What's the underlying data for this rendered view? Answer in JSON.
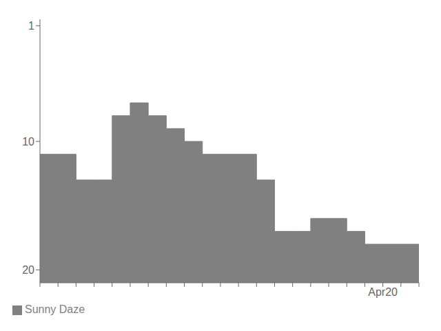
{
  "chart_data": {
    "type": "area",
    "categories": [
      null,
      null,
      null,
      null,
      null,
      null,
      null,
      null,
      null,
      null,
      null,
      null,
      null,
      null,
      null,
      null,
      null,
      null,
      null,
      "Apr20",
      null,
      null
    ],
    "series": [
      {
        "name": "Sunny Daze",
        "color": "#808080",
        "values": [
          11,
          11,
          13,
          13,
          8,
          7,
          8,
          9,
          10,
          11,
          11,
          11,
          13,
          17,
          17,
          16,
          16,
          17,
          18,
          18,
          18,
          18
        ]
      }
    ],
    "ylim": [
      21,
      0.5
    ],
    "yticks": [
      1,
      10,
      20
    ],
    "line_style": "step",
    "grid": false,
    "legend": "lower left"
  }
}
